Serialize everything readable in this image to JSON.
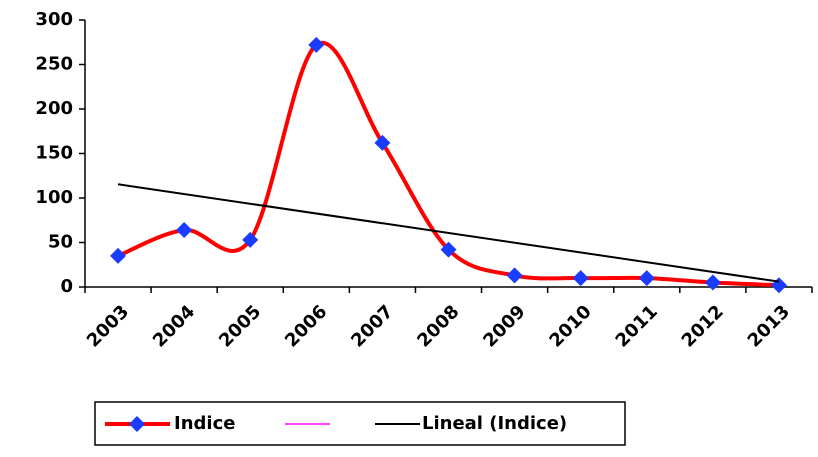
{
  "chart_data": {
    "type": "line",
    "categories": [
      "2003",
      "2004",
      "2005",
      "2006",
      "2007",
      "2008",
      "2009",
      "2010",
      "2011",
      "2012",
      "2013"
    ],
    "series": [
      {
        "name": "Indice",
        "color": "#ff0000",
        "marker_color": "#1a3cff",
        "smooth": true,
        "values": [
          35,
          64,
          53,
          272,
          162,
          42,
          13,
          10,
          10,
          5,
          2
        ]
      },
      {
        "name": "Lineal (Indice)",
        "color": "#000000",
        "smooth": false,
        "values": [
          115.4,
          104.5,
          93.6,
          82.6,
          71.7,
          60.7,
          49.8,
          38.8,
          27.9,
          17.0,
          6.0
        ]
      }
    ],
    "ylim": [
      0,
      300
    ],
    "yticks": [
      0,
      50,
      100,
      150,
      200,
      250,
      300
    ],
    "grid": false,
    "legend": "bottom"
  }
}
